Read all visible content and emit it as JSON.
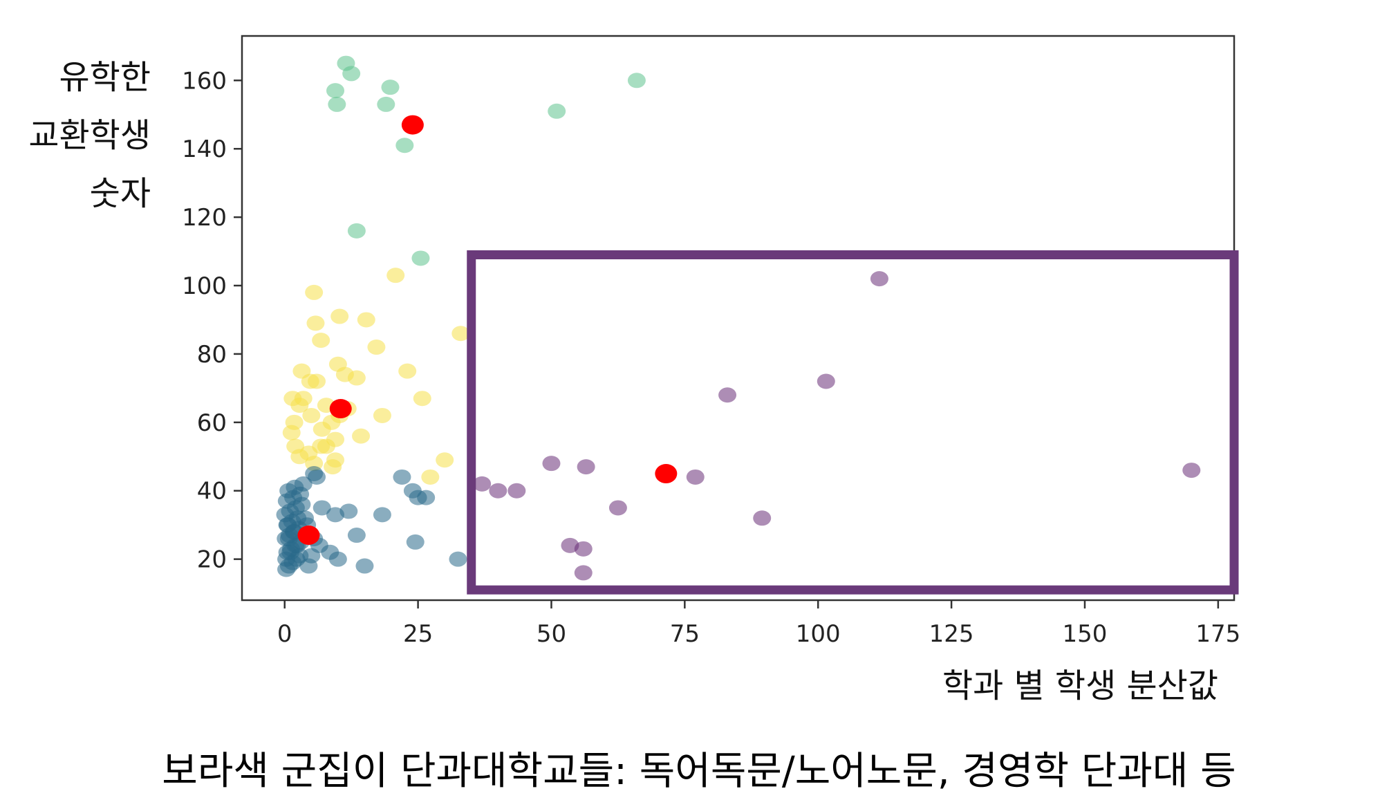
{
  "chart_data": {
    "type": "scatter",
    "ylabel_lines": [
      "유학한",
      "교환학생",
      "숫자"
    ],
    "xlabel": "학과 별 학생 분산값",
    "xlim": [
      -8,
      178
    ],
    "ylim": [
      8,
      173
    ],
    "x_ticks": [
      0,
      25,
      50,
      75,
      100,
      125,
      150,
      175
    ],
    "y_ticks": [
      20,
      40,
      60,
      80,
      100,
      120,
      140,
      160
    ],
    "grid": false,
    "colors": {
      "teal_cluster": "#2a6a8a",
      "green_cluster": "#5ec28e",
      "yellow_cluster": "#f5e04a",
      "purple_cluster": "#6a2f79",
      "centroid": "#ff0000",
      "highlight_box": "#6a3a7a"
    },
    "series": [
      {
        "cluster": "green",
        "color": "#5ec28e",
        "x": [
          11.5,
          12.5,
          9.5,
          9.8,
          19.8,
          19.0,
          22.5,
          25.5,
          13.5,
          51.0,
          66.0
        ],
        "y": [
          165,
          162,
          157,
          153,
          158,
          153,
          141,
          108,
          116,
          151,
          160
        ]
      },
      {
        "cluster": "yellow",
        "color": "#f5e04a",
        "x": [
          5.5,
          5.8,
          10.3,
          15.3,
          6.8,
          17.2,
          10.0,
          11.3,
          13.5,
          3.2,
          4.8,
          1.5,
          6.0,
          23.0,
          3.5,
          7.8,
          11.8,
          25.8,
          2.8,
          5.0,
          8.8,
          18.3,
          10.3,
          1.8,
          7.0,
          14.3,
          1.3,
          9.5,
          6.8,
          2.0,
          4.5,
          7.8,
          9.5,
          30.0,
          27.3,
          20.8,
          33.0,
          2.8,
          5.5,
          9.0
        ],
        "y": [
          98,
          89,
          91,
          90,
          84,
          82,
          77,
          74,
          73,
          75,
          72,
          67,
          72,
          75,
          67,
          65,
          64,
          67,
          65,
          62,
          60,
          62,
          62,
          60,
          58,
          56,
          57,
          55,
          53,
          53,
          51,
          53,
          49,
          49,
          44,
          103,
          86,
          50,
          48,
          47
        ]
      },
      {
        "cluster": "teal",
        "color": "#2a6a8a",
        "x": [
          0.3,
          0.8,
          1.5,
          2.2,
          2.8,
          0.5,
          1.2,
          2.0,
          3.0,
          0.2,
          0.9,
          1.8,
          2.6,
          0.6,
          1.4,
          2.4,
          0.1,
          1.0,
          2.1,
          3.2,
          0.4,
          1.6,
          2.9,
          0.7,
          1.9,
          3.5,
          0.3,
          1.1,
          2.3,
          0.8,
          1.7,
          0.5,
          4.5,
          5.0,
          6.5,
          5.5,
          8.5,
          10.0,
          7.0,
          12.0,
          13.5,
          9.5,
          15.0,
          18.3,
          22.0,
          25.0,
          24.0,
          26.5,
          24.5,
          32.5,
          6.0,
          5.5,
          3.8,
          4.2
        ],
        "y": [
          17,
          18,
          19,
          20,
          21,
          22,
          23,
          24,
          25,
          26,
          27,
          28,
          29,
          30,
          31,
          32,
          33,
          34,
          35,
          36,
          37,
          38,
          39,
          40,
          41,
          42,
          20,
          22,
          24,
          26,
          28,
          30,
          18,
          21,
          24,
          26,
          22,
          20,
          35,
          34,
          27,
          33,
          18,
          33,
          44,
          38,
          40,
          38,
          25,
          20,
          44,
          45,
          32,
          30
        ]
      },
      {
        "cluster": "purple",
        "color": "#6a2f79",
        "x": [
          111.5,
          101.5,
          83.0,
          50.0,
          56.5,
          37.0,
          40.0,
          43.5,
          77.0,
          62.5,
          89.5,
          53.5,
          56.0,
          56.0,
          170.0
        ],
        "y": [
          102,
          72,
          68,
          48,
          47,
          42,
          40,
          40,
          44,
          35,
          32,
          24,
          23,
          16,
          46
        ]
      }
    ],
    "centroids": {
      "x": [
        24.0,
        10.5,
        4.5,
        71.5
      ],
      "y": [
        147,
        64,
        27,
        45
      ]
    },
    "annotation_box": {
      "x_range": [
        35,
        178
      ],
      "y_range": [
        11,
        109
      ]
    }
  },
  "caption": "보라색 군집이 단과대학교들: 독어독문/노어노문, 경영학 단과대 등"
}
